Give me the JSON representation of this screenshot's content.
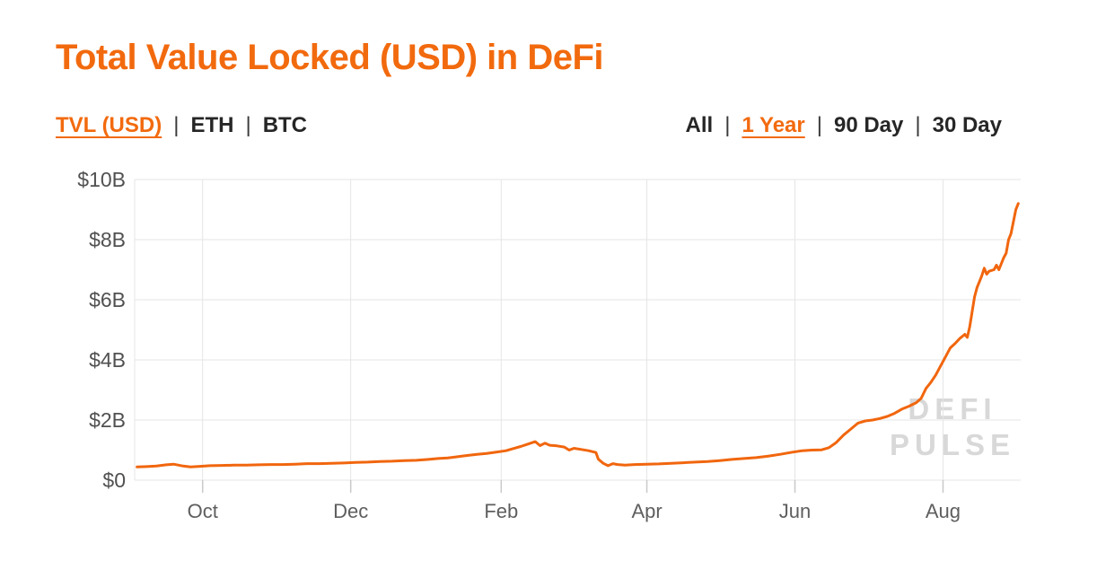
{
  "header": {
    "title": "Total Value Locked (USD) in DeFi"
  },
  "tabs": {
    "separator": "|",
    "series": [
      {
        "label": "TVL (USD)",
        "active": true
      },
      {
        "label": "ETH",
        "active": false
      },
      {
        "label": "BTC",
        "active": false
      }
    ],
    "ranges": [
      {
        "label": "All",
        "active": false
      },
      {
        "label": "1 Year",
        "active": true
      },
      {
        "label": "90 Day",
        "active": false
      },
      {
        "label": "30 Day",
        "active": false
      }
    ]
  },
  "watermark": {
    "line1": "DEFI",
    "line2": "PULSE"
  },
  "colors": {
    "accent": "#f26a0e",
    "line": "#f1660e",
    "text_dark": "#262626",
    "axis_text": "#515151",
    "month_text": "#5e5e5e",
    "gridline": "#e5e5e5",
    "tick": "#c9c9c9",
    "watermark": "#d8d8d8"
  },
  "chart_data": {
    "type": "line",
    "title": "Total Value Locked (USD) in DeFi",
    "series_name": "TVL (USD)",
    "unit": "USD billions",
    "xlabel": "",
    "ylabel": "",
    "grid": true,
    "legend": "none",
    "x_range": [
      "2019-09-03",
      "2020-09-02"
    ],
    "ylim": [
      0,
      10
    ],
    "y_ticks": [
      {
        "value": 0,
        "label": "$0"
      },
      {
        "value": 2,
        "label": "$2B"
      },
      {
        "value": 4,
        "label": "$4B"
      },
      {
        "value": 6,
        "label": "$6B"
      },
      {
        "value": 8,
        "label": "$8B"
      },
      {
        "value": 10,
        "label": "$10B"
      }
    ],
    "x_ticks": [
      {
        "date": "2019-10-01",
        "label": "Oct"
      },
      {
        "date": "2019-12-01",
        "label": "Dec"
      },
      {
        "date": "2020-02-01",
        "label": "Feb"
      },
      {
        "date": "2020-04-01",
        "label": "Apr"
      },
      {
        "date": "2020-06-01",
        "label": "Jun"
      },
      {
        "date": "2020-08-01",
        "label": "Aug"
      }
    ],
    "points": [
      [
        "2019-09-04",
        0.44
      ],
      [
        "2019-09-08",
        0.45
      ],
      [
        "2019-09-12",
        0.47
      ],
      [
        "2019-09-16",
        0.51
      ],
      [
        "2019-09-19",
        0.53
      ],
      [
        "2019-09-23",
        0.47
      ],
      [
        "2019-09-26",
        0.44
      ],
      [
        "2019-09-30",
        0.46
      ],
      [
        "2019-10-04",
        0.48
      ],
      [
        "2019-10-09",
        0.49
      ],
      [
        "2019-10-14",
        0.5
      ],
      [
        "2019-10-19",
        0.5
      ],
      [
        "2019-10-24",
        0.51
      ],
      [
        "2019-10-29",
        0.52
      ],
      [
        "2019-11-03",
        0.52
      ],
      [
        "2019-11-08",
        0.53
      ],
      [
        "2019-11-13",
        0.55
      ],
      [
        "2019-11-18",
        0.55
      ],
      [
        "2019-11-23",
        0.56
      ],
      [
        "2019-11-28",
        0.57
      ],
      [
        "2019-12-03",
        0.59
      ],
      [
        "2019-12-08",
        0.6
      ],
      [
        "2019-12-13",
        0.62
      ],
      [
        "2019-12-18",
        0.63
      ],
      [
        "2019-12-23",
        0.65
      ],
      [
        "2019-12-28",
        0.66
      ],
      [
        "2020-01-02",
        0.69
      ],
      [
        "2020-01-06",
        0.72
      ],
      [
        "2020-01-10",
        0.74
      ],
      [
        "2020-01-14",
        0.78
      ],
      [
        "2020-01-18",
        0.82
      ],
      [
        "2020-01-22",
        0.86
      ],
      [
        "2020-01-26",
        0.89
      ],
      [
        "2020-01-30",
        0.93
      ],
      [
        "2020-02-03",
        0.98
      ],
      [
        "2020-02-06",
        1.05
      ],
      [
        "2020-02-09",
        1.12
      ],
      [
        "2020-02-12",
        1.2
      ],
      [
        "2020-02-15",
        1.28
      ],
      [
        "2020-02-17",
        1.15
      ],
      [
        "2020-02-19",
        1.23
      ],
      [
        "2020-02-21",
        1.16
      ],
      [
        "2020-02-24",
        1.14
      ],
      [
        "2020-02-27",
        1.1
      ],
      [
        "2020-02-29",
        1.0
      ],
      [
        "2020-03-02",
        1.06
      ],
      [
        "2020-03-05",
        1.02
      ],
      [
        "2020-03-08",
        0.98
      ],
      [
        "2020-03-11",
        0.92
      ],
      [
        "2020-03-12",
        0.7
      ],
      [
        "2020-03-14",
        0.56
      ],
      [
        "2020-03-16",
        0.48
      ],
      [
        "2020-03-18",
        0.55
      ],
      [
        "2020-03-20",
        0.52
      ],
      [
        "2020-03-23",
        0.5
      ],
      [
        "2020-03-27",
        0.52
      ],
      [
        "2020-04-01",
        0.53
      ],
      [
        "2020-04-06",
        0.54
      ],
      [
        "2020-04-11",
        0.56
      ],
      [
        "2020-04-16",
        0.58
      ],
      [
        "2020-04-21",
        0.6
      ],
      [
        "2020-04-26",
        0.62
      ],
      [
        "2020-05-01",
        0.65
      ],
      [
        "2020-05-06",
        0.69
      ],
      [
        "2020-05-11",
        0.72
      ],
      [
        "2020-05-16",
        0.75
      ],
      [
        "2020-05-21",
        0.8
      ],
      [
        "2020-05-26",
        0.86
      ],
      [
        "2020-05-31",
        0.93
      ],
      [
        "2020-06-04",
        0.98
      ],
      [
        "2020-06-08",
        1.0
      ],
      [
        "2020-06-12",
        1.01
      ],
      [
        "2020-06-15",
        1.08
      ],
      [
        "2020-06-18",
        1.25
      ],
      [
        "2020-06-21",
        1.5
      ],
      [
        "2020-06-24",
        1.7
      ],
      [
        "2020-06-27",
        1.9
      ],
      [
        "2020-06-30",
        1.97
      ],
      [
        "2020-07-03",
        2.0
      ],
      [
        "2020-07-06",
        2.05
      ],
      [
        "2020-07-09",
        2.12
      ],
      [
        "2020-07-12",
        2.22
      ],
      [
        "2020-07-15",
        2.36
      ],
      [
        "2020-07-18",
        2.46
      ],
      [
        "2020-07-21",
        2.58
      ],
      [
        "2020-07-23",
        2.72
      ],
      [
        "2020-07-25",
        3.05
      ],
      [
        "2020-07-27",
        3.25
      ],
      [
        "2020-07-29",
        3.5
      ],
      [
        "2020-07-31",
        3.8
      ],
      [
        "2020-08-02",
        4.1
      ],
      [
        "2020-08-04",
        4.4
      ],
      [
        "2020-08-06",
        4.55
      ],
      [
        "2020-08-08",
        4.72
      ],
      [
        "2020-08-10",
        4.85
      ],
      [
        "2020-08-11",
        4.75
      ],
      [
        "2020-08-12",
        5.1
      ],
      [
        "2020-08-13",
        5.6
      ],
      [
        "2020-08-14",
        6.1
      ],
      [
        "2020-08-15",
        6.4
      ],
      [
        "2020-08-16",
        6.6
      ],
      [
        "2020-08-17",
        6.8
      ],
      [
        "2020-08-18",
        7.05
      ],
      [
        "2020-08-19",
        6.85
      ],
      [
        "2020-08-20",
        6.95
      ],
      [
        "2020-08-22",
        7.0
      ],
      [
        "2020-08-23",
        7.15
      ],
      [
        "2020-08-24",
        7.0
      ],
      [
        "2020-08-26",
        7.4
      ],
      [
        "2020-08-27",
        7.55
      ],
      [
        "2020-08-28",
        8.0
      ],
      [
        "2020-08-29",
        8.2
      ],
      [
        "2020-08-30",
        8.6
      ],
      [
        "2020-08-31",
        9.0
      ],
      [
        "2020-09-01",
        9.2
      ]
    ]
  }
}
